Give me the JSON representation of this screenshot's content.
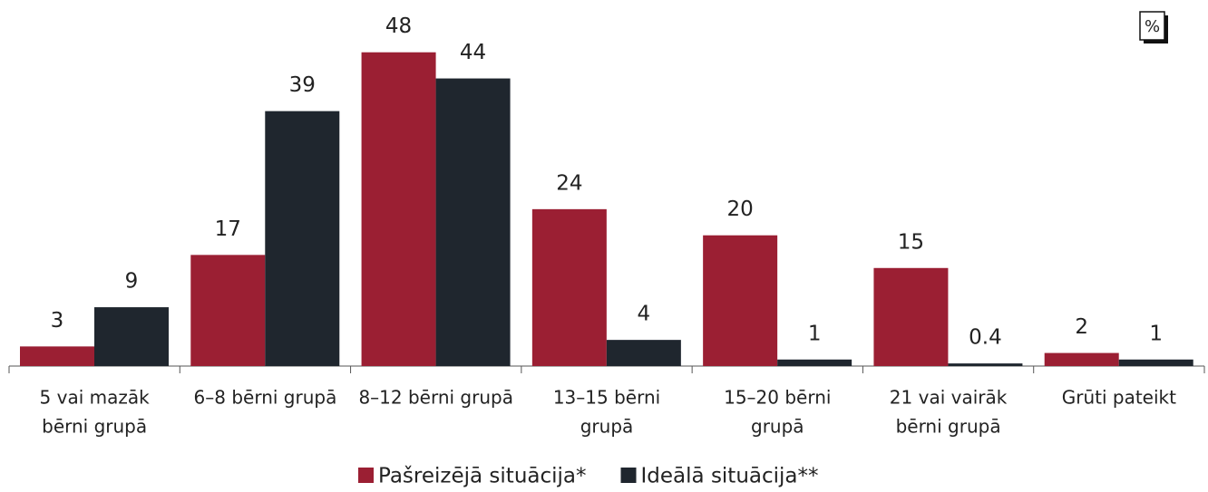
{
  "chart_data": {
    "type": "bar",
    "unit": "%",
    "categories": [
      [
        "5 vai mazāk",
        "bērni grupā"
      ],
      [
        "6–8 bērni grupā"
      ],
      [
        "8–12 bērni grupā"
      ],
      [
        "13–15 bērni",
        "grupā"
      ],
      [
        "15–20 bērni",
        "grupā"
      ],
      [
        "21 vai vairāk",
        "bērni grupā"
      ],
      [
        "Grūti pateikt"
      ]
    ],
    "series": [
      {
        "name": "Pašreizējā situācija*",
        "color": "#9b1f33",
        "values": [
          3,
          17,
          48,
          24,
          20,
          15,
          2
        ]
      },
      {
        "name": "Ideālā situācija**",
        "color": "#1f262e",
        "values": [
          9,
          39,
          44,
          4,
          1,
          0.4,
          1
        ]
      }
    ],
    "ylim": [
      0,
      56
    ]
  }
}
